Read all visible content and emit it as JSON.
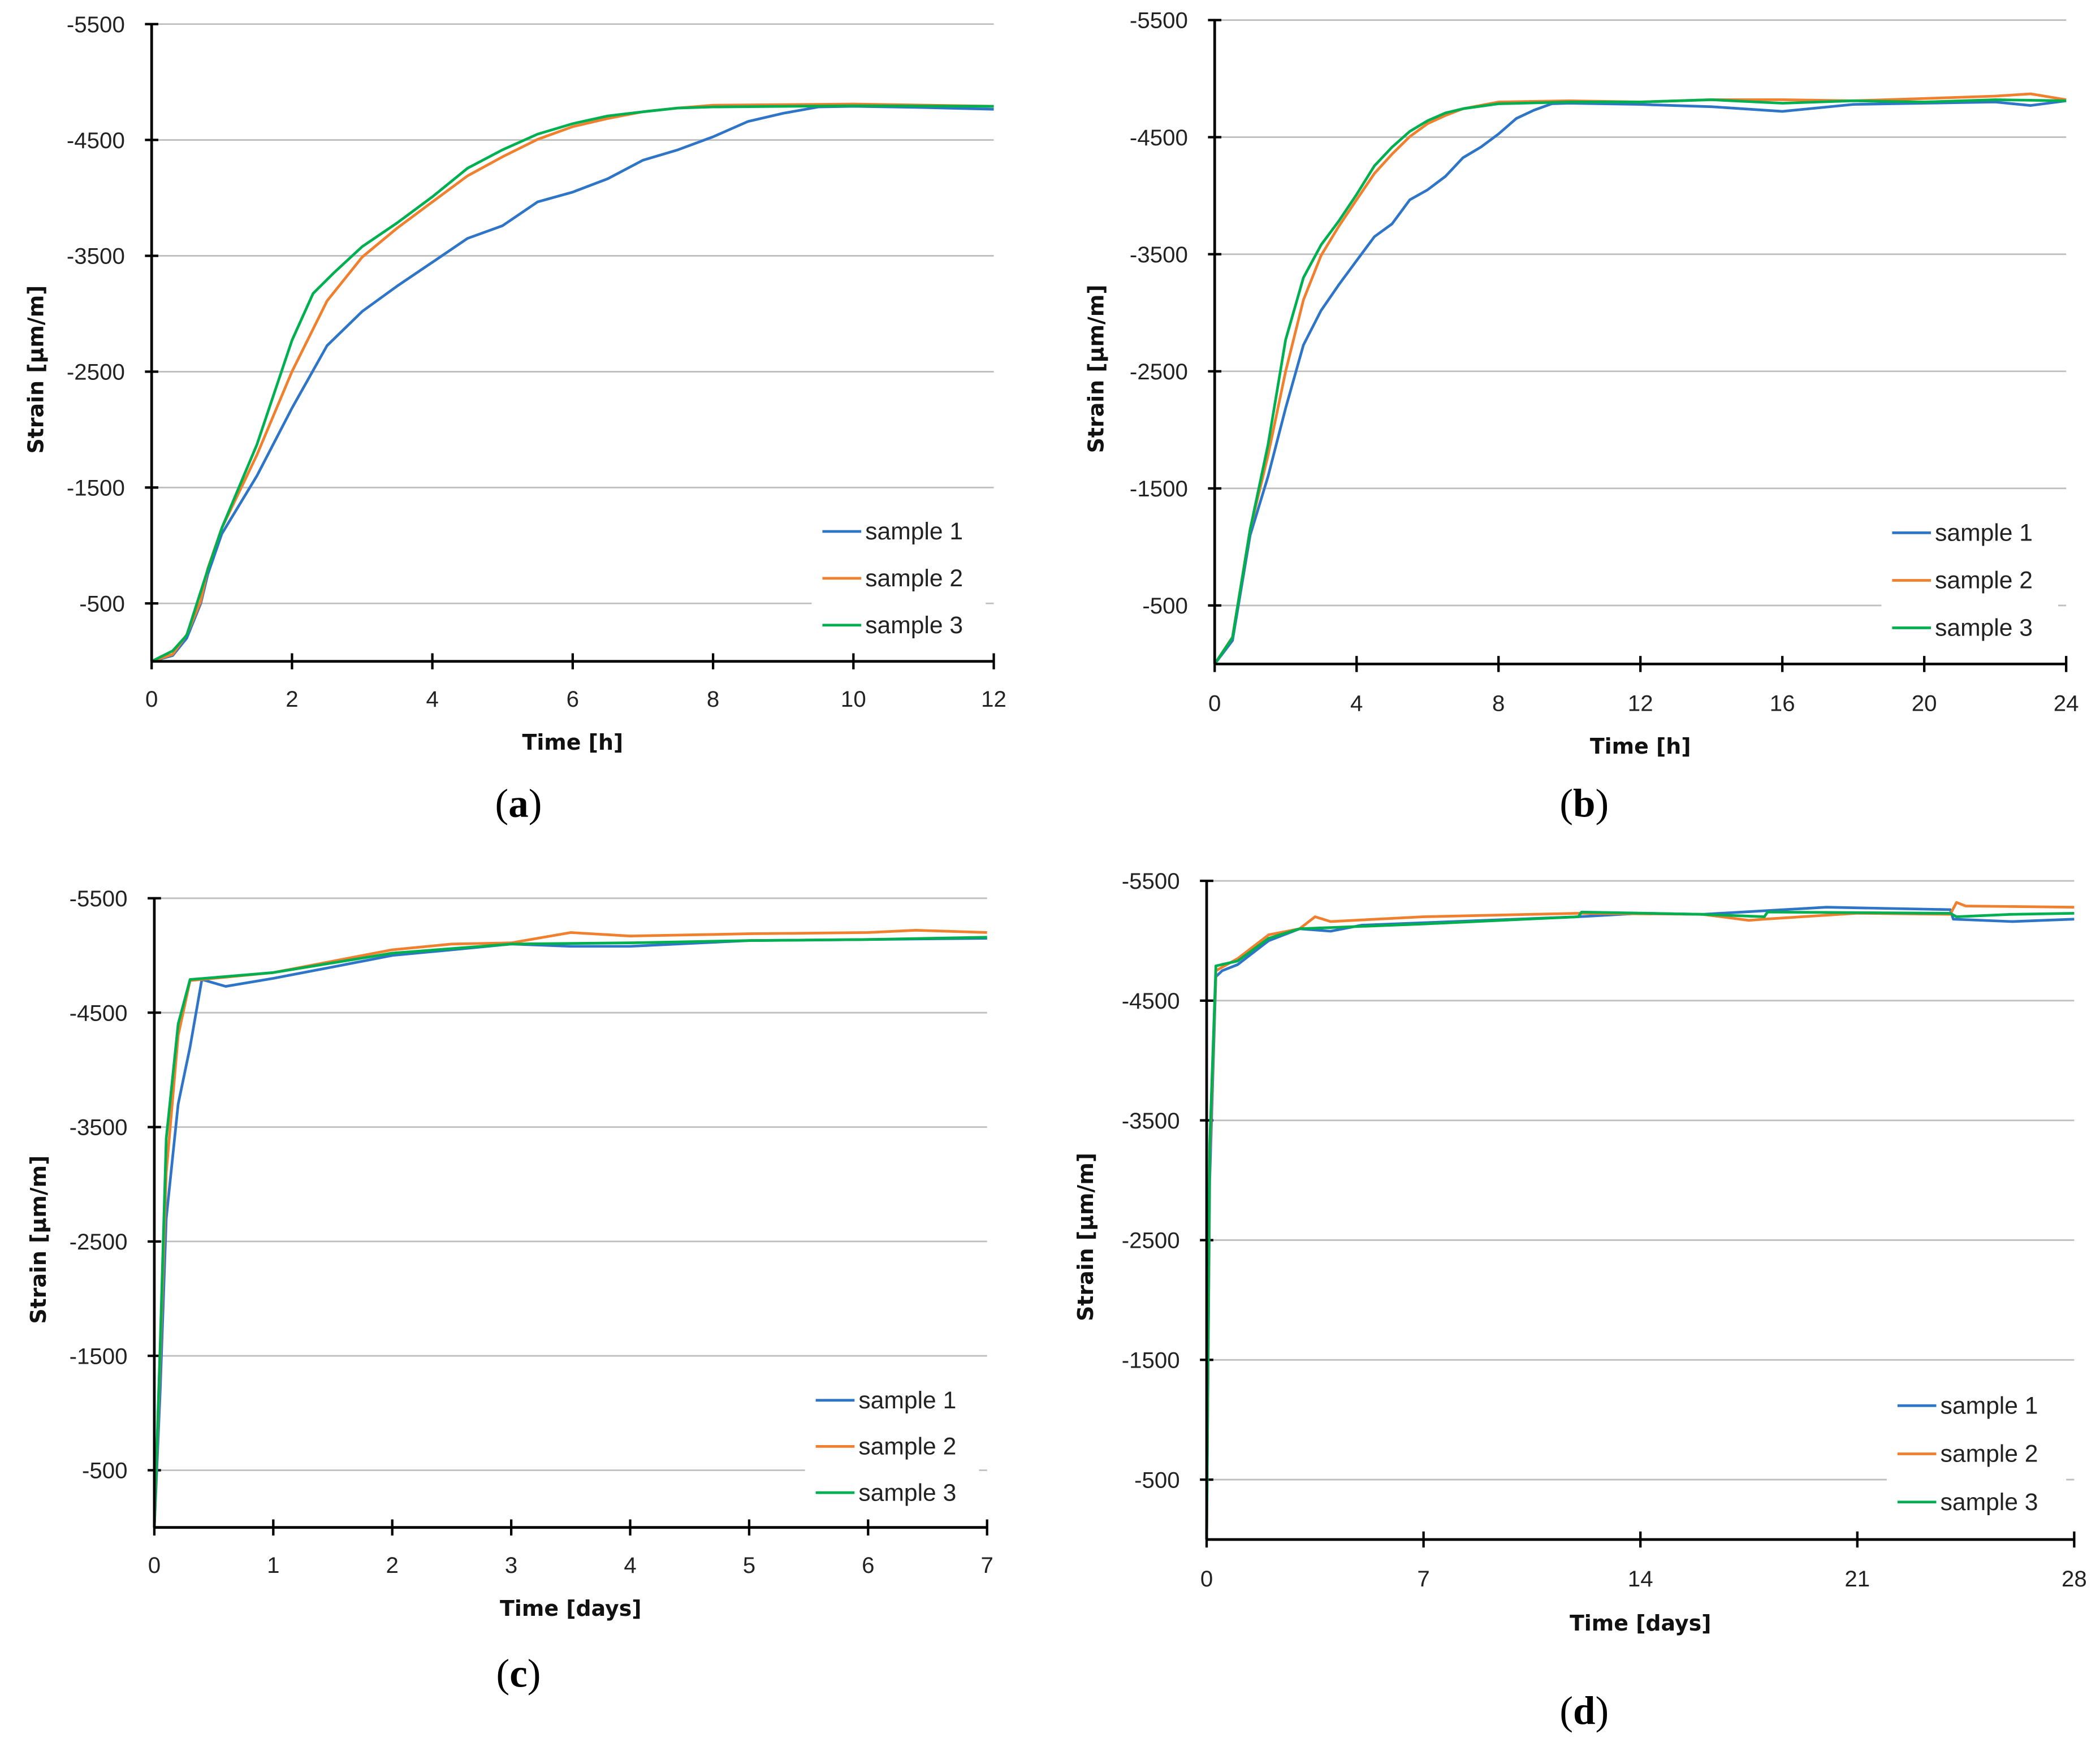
{
  "colors": {
    "sample 1": "#2E75C8",
    "sample 2": "#F07F2E",
    "sample 3": "#00B050",
    "grid": "#BFBFBF",
    "axis": "#000000"
  },
  "chart_data": [
    {
      "panel_label": "a",
      "type": "line",
      "xlabel": "Time [h]",
      "ylabel": "Strain [µm/m]",
      "xlim": [
        0,
        12
      ],
      "ylim": [
        0,
        -5500
      ],
      "xticks": [
        0,
        2,
        4,
        6,
        8,
        10,
        12
      ],
      "yticks": [
        -500,
        -1500,
        -2500,
        -3500,
        -4500,
        -5500
      ],
      "grid": "horizontal",
      "legend": "bottom-right",
      "series": [
        {
          "name": "sample 1",
          "points": [
            [
              0,
              0
            ],
            [
              0.3,
              -50
            ],
            [
              0.5,
              -200
            ],
            [
              0.7,
              -500
            ],
            [
              0.8,
              -750
            ],
            [
              1,
              -1100
            ],
            [
              1.5,
              -1600
            ],
            [
              2,
              -2185
            ],
            [
              2.5,
              -2725
            ],
            [
              3,
              -3020
            ],
            [
              3.5,
              -3240
            ],
            [
              4,
              -3445
            ],
            [
              4.5,
              -3650
            ],
            [
              5,
              -3760
            ],
            [
              5.5,
              -3965
            ],
            [
              6,
              -4050
            ],
            [
              6.5,
              -4165
            ],
            [
              7,
              -4325
            ],
            [
              7.5,
              -4415
            ],
            [
              8,
              -4527
            ],
            [
              8.5,
              -4660
            ],
            [
              9,
              -4730
            ],
            [
              9.5,
              -4785
            ],
            [
              10,
              -4790
            ],
            [
              11,
              -4780
            ],
            [
              12,
              -4765
            ]
          ]
        },
        {
          "name": "sample 2",
          "points": [
            [
              0,
              0
            ],
            [
              0.3,
              -60
            ],
            [
              0.5,
              -230
            ],
            [
              0.7,
              -520
            ],
            [
              0.8,
              -800
            ],
            [
              1,
              -1150
            ],
            [
              1.5,
              -1780
            ],
            [
              2,
              -2500
            ],
            [
              2.5,
              -3110
            ],
            [
              3,
              -3490
            ],
            [
              3.5,
              -3740
            ],
            [
              4,
              -3965
            ],
            [
              4.5,
              -4190
            ],
            [
              5,
              -4355
            ],
            [
              5.5,
              -4505
            ],
            [
              6,
              -4615
            ],
            [
              6.5,
              -4685
            ],
            [
              7,
              -4743
            ],
            [
              7.5,
              -4775
            ],
            [
              8,
              -4800
            ],
            [
              10,
              -4810
            ],
            [
              12,
              -4790
            ]
          ]
        },
        {
          "name": "sample 3",
          "points": [
            [
              0,
              0
            ],
            [
              0.3,
              -90
            ],
            [
              0.5,
              -225
            ],
            [
              0.8,
              -790
            ],
            [
              1,
              -1150
            ],
            [
              1.5,
              -1870
            ],
            [
              2,
              -2770
            ],
            [
              2.3,
              -3175
            ],
            [
              2.6,
              -3355
            ],
            [
              3,
              -3580
            ],
            [
              3.5,
              -3785
            ],
            [
              4,
              -4010
            ],
            [
              4.5,
              -4255
            ],
            [
              5,
              -4415
            ],
            [
              5.5,
              -4550
            ],
            [
              6,
              -4640
            ],
            [
              6.5,
              -4707
            ],
            [
              7,
              -4743
            ],
            [
              7.5,
              -4775
            ],
            [
              8,
              -4785
            ],
            [
              10,
              -4795
            ],
            [
              12,
              -4790
            ]
          ]
        }
      ]
    },
    {
      "panel_label": "b",
      "type": "line",
      "xlabel": "Time [h]",
      "ylabel": "Strain [µm/m]",
      "xlim": [
        0,
        24
      ],
      "ylim": [
        0,
        -5500
      ],
      "xticks": [
        0,
        4,
        8,
        12,
        16,
        20,
        24
      ],
      "yticks": [
        -500,
        -1500,
        -2500,
        -3500,
        -4500,
        -5500
      ],
      "grid": "horizontal",
      "legend": "bottom-right",
      "series": [
        {
          "name": "sample 1",
          "points": [
            [
              0,
              0
            ],
            [
              0.5,
              -200
            ],
            [
              1,
              -1100
            ],
            [
              1.5,
              -1600
            ],
            [
              2,
              -2185
            ],
            [
              2.5,
              -2725
            ],
            [
              3,
              -3020
            ],
            [
              3.5,
              -3240
            ],
            [
              4,
              -3445
            ],
            [
              4.5,
              -3650
            ],
            [
              5,
              -3760
            ],
            [
              5.5,
              -3965
            ],
            [
              6,
              -4050
            ],
            [
              6.5,
              -4165
            ],
            [
              7,
              -4325
            ],
            [
              7.5,
              -4415
            ],
            [
              8,
              -4527
            ],
            [
              8.5,
              -4660
            ],
            [
              9,
              -4730
            ],
            [
              9.5,
              -4785
            ],
            [
              10,
              -4790
            ],
            [
              12,
              -4780
            ],
            [
              14,
              -4760
            ],
            [
              16,
              -4720
            ],
            [
              18,
              -4780
            ],
            [
              20,
              -4790
            ],
            [
              22,
              -4800
            ],
            [
              23,
              -4770
            ],
            [
              24,
              -4810
            ]
          ]
        },
        {
          "name": "sample 2",
          "points": [
            [
              0,
              0
            ],
            [
              0.5,
              -230
            ],
            [
              1,
              -1150
            ],
            [
              1.5,
              -1780
            ],
            [
              2,
              -2500
            ],
            [
              2.5,
              -3110
            ],
            [
              3,
              -3490
            ],
            [
              3.5,
              -3740
            ],
            [
              4,
              -3965
            ],
            [
              4.5,
              -4190
            ],
            [
              5,
              -4355
            ],
            [
              5.5,
              -4505
            ],
            [
              6,
              -4615
            ],
            [
              6.5,
              -4685
            ],
            [
              7,
              -4743
            ],
            [
              8,
              -4800
            ],
            [
              10,
              -4810
            ],
            [
              12,
              -4800
            ],
            [
              14,
              -4820
            ],
            [
              16,
              -4820
            ],
            [
              18,
              -4810
            ],
            [
              20,
              -4830
            ],
            [
              22,
              -4850
            ],
            [
              23,
              -4870
            ],
            [
              24,
              -4820
            ]
          ]
        },
        {
          "name": "sample 3",
          "points": [
            [
              0,
              0
            ],
            [
              0.5,
              -225
            ],
            [
              1,
              -1150
            ],
            [
              1.5,
              -1870
            ],
            [
              2,
              -2770
            ],
            [
              2.5,
              -3300
            ],
            [
              3,
              -3580
            ],
            [
              3.5,
              -3785
            ],
            [
              4,
              -4010
            ],
            [
              4.5,
              -4255
            ],
            [
              5,
              -4415
            ],
            [
              5.5,
              -4550
            ],
            [
              6,
              -4640
            ],
            [
              6.5,
              -4707
            ],
            [
              7,
              -4743
            ],
            [
              8,
              -4785
            ],
            [
              10,
              -4800
            ],
            [
              12,
              -4800
            ],
            [
              14,
              -4820
            ],
            [
              16,
              -4790
            ],
            [
              18,
              -4810
            ],
            [
              20,
              -4800
            ],
            [
              22,
              -4820
            ],
            [
              24,
              -4810
            ]
          ]
        }
      ]
    },
    {
      "panel_label": "c",
      "type": "line",
      "xlabel": "Time [days]",
      "ylabel": "Strain [µm/m]",
      "xlim": [
        0,
        7
      ],
      "ylim": [
        0,
        -5500
      ],
      "xticks": [
        0,
        1,
        2,
        3,
        4,
        5,
        6,
        7
      ],
      "yticks": [
        -500,
        -1500,
        -2500,
        -3500,
        -4500,
        -5500
      ],
      "grid": "horizontal",
      "legend": "bottom-right",
      "series": [
        {
          "name": "sample 1",
          "points": [
            [
              0,
              0
            ],
            [
              0.05,
              -1200
            ],
            [
              0.1,
              -2700
            ],
            [
              0.2,
              -3700
            ],
            [
              0.3,
              -4200
            ],
            [
              0.4,
              -4790
            ],
            [
              0.6,
              -4730
            ],
            [
              1,
              -4800
            ],
            [
              1.5,
              -4900
            ],
            [
              2,
              -5000
            ],
            [
              2.5,
              -5050
            ],
            [
              3,
              -5100
            ],
            [
              3.5,
              -5080
            ],
            [
              4,
              -5080
            ],
            [
              5,
              -5130
            ],
            [
              6,
              -5140
            ],
            [
              7,
              -5150
            ]
          ]
        },
        {
          "name": "sample 2",
          "points": [
            [
              0,
              0
            ],
            [
              0.05,
              -1500
            ],
            [
              0.1,
              -3100
            ],
            [
              0.2,
              -4300
            ],
            [
              0.3,
              -4780
            ],
            [
              1,
              -4850
            ],
            [
              1.5,
              -4950
            ],
            [
              2,
              -5050
            ],
            [
              2.5,
              -5100
            ],
            [
              3,
              -5110
            ],
            [
              3.5,
              -5200
            ],
            [
              4,
              -5170
            ],
            [
              5,
              -5190
            ],
            [
              6,
              -5200
            ],
            [
              6.4,
              -5220
            ],
            [
              7,
              -5200
            ]
          ]
        },
        {
          "name": "sample 3",
          "points": [
            [
              0,
              0
            ],
            [
              0.05,
              -1600
            ],
            [
              0.1,
              -3400
            ],
            [
              0.2,
              -4400
            ],
            [
              0.3,
              -4790
            ],
            [
              1,
              -4850
            ],
            [
              2,
              -5020
            ],
            [
              3,
              -5100
            ],
            [
              4,
              -5110
            ],
            [
              5,
              -5130
            ],
            [
              6,
              -5140
            ],
            [
              7,
              -5160
            ]
          ]
        }
      ]
    },
    {
      "panel_label": "d",
      "type": "line",
      "xlabel": "Time [days]",
      "ylabel": "Strain [µm/m]",
      "xlim": [
        0,
        28
      ],
      "ylim": [
        0,
        -5500
      ],
      "xticks": [
        0,
        7,
        14,
        21,
        28
      ],
      "yticks": [
        -500,
        -1500,
        -2500,
        -3500,
        -4500,
        -5500
      ],
      "grid": "horizontal",
      "legend": "bottom-right",
      "series": [
        {
          "name": "sample 1",
          "points": [
            [
              0,
              0
            ],
            [
              0.1,
              -3000
            ],
            [
              0.3,
              -4700
            ],
            [
              0.5,
              -4750
            ],
            [
              1,
              -4800
            ],
            [
              2,
              -5000
            ],
            [
              3,
              -5100
            ],
            [
              4,
              -5080
            ],
            [
              5,
              -5130
            ],
            [
              7,
              -5150
            ],
            [
              12,
              -5200
            ],
            [
              14,
              -5230
            ],
            [
              16,
              -5220
            ],
            [
              20,
              -5280
            ],
            [
              24,
              -5260
            ],
            [
              24.1,
              -5180
            ],
            [
              26,
              -5160
            ],
            [
              28,
              -5180
            ]
          ]
        },
        {
          "name": "sample 2",
          "points": [
            [
              0,
              0
            ],
            [
              0.1,
              -3200
            ],
            [
              0.3,
              -4750
            ],
            [
              1,
              -4850
            ],
            [
              2,
              -5050
            ],
            [
              3,
              -5100
            ],
            [
              3.5,
              -5200
            ],
            [
              4,
              -5160
            ],
            [
              7,
              -5200
            ],
            [
              12,
              -5230
            ],
            [
              16,
              -5220
            ],
            [
              17.5,
              -5170
            ],
            [
              18,
              -5180
            ],
            [
              21,
              -5230
            ],
            [
              24,
              -5220
            ],
            [
              24.2,
              -5320
            ],
            [
              24.5,
              -5290
            ],
            [
              28,
              -5280
            ]
          ]
        },
        {
          "name": "sample 3",
          "points": [
            [
              0,
              0
            ],
            [
              0.1,
              -3300
            ],
            [
              0.3,
              -4790
            ],
            [
              1,
              -4830
            ],
            [
              2,
              -5020
            ],
            [
              3,
              -5100
            ],
            [
              7,
              -5140
            ],
            [
              12,
              -5200
            ],
            [
              12.1,
              -5240
            ],
            [
              16,
              -5220
            ],
            [
              18,
              -5200
            ],
            [
              18.1,
              -5240
            ],
            [
              24,
              -5230
            ],
            [
              24.2,
              -5200
            ],
            [
              26,
              -5220
            ],
            [
              28,
              -5230
            ]
          ]
        }
      ]
    }
  ]
}
